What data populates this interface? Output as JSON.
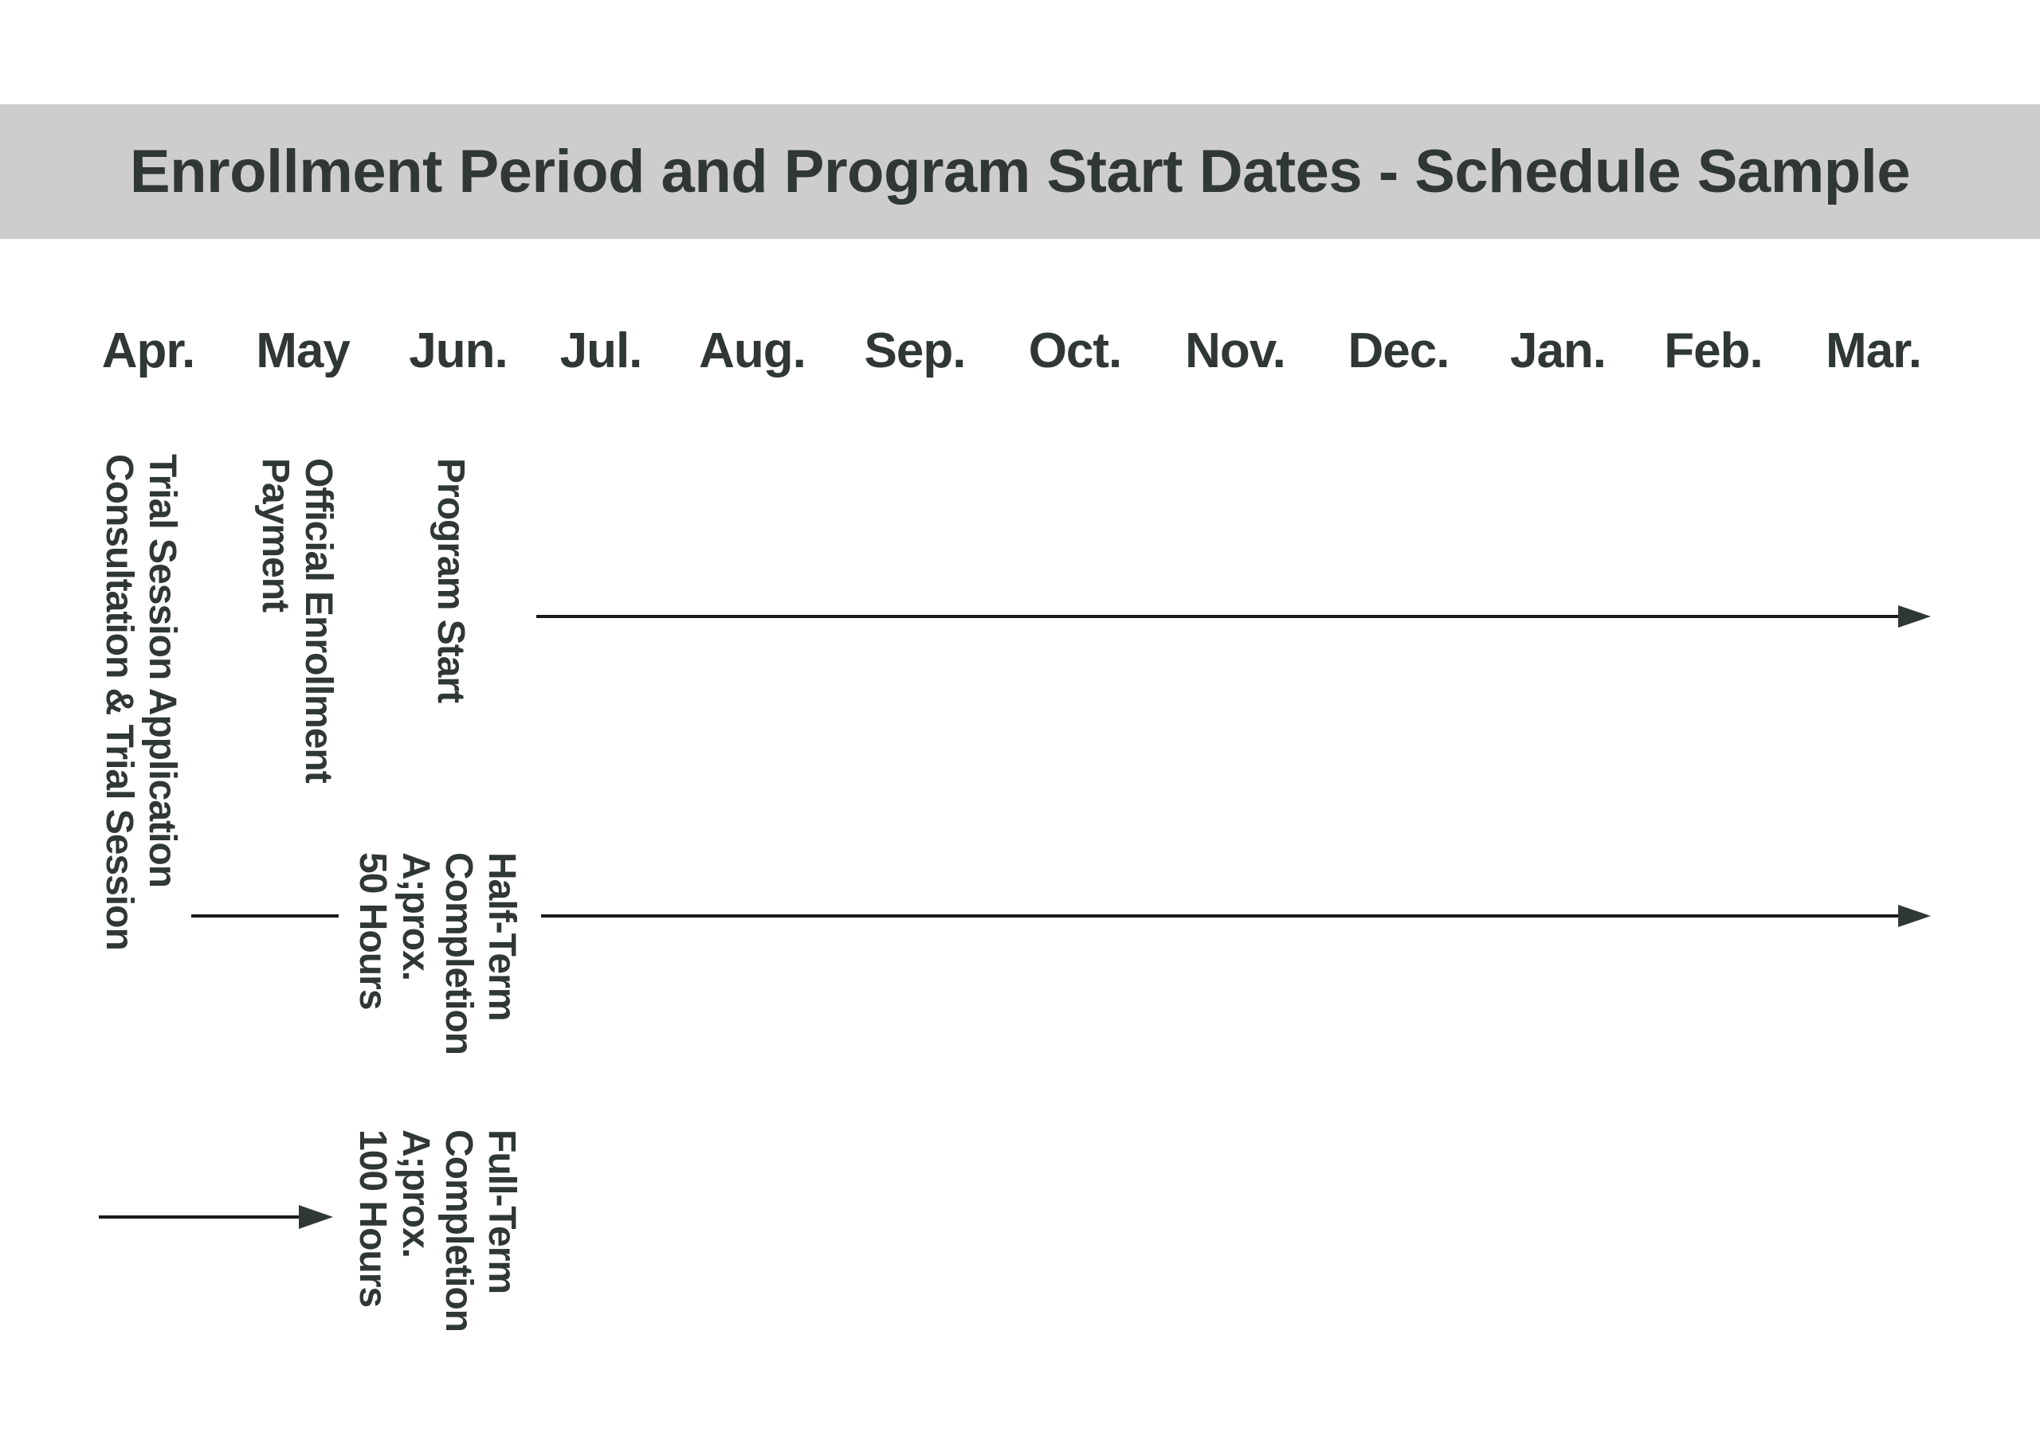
{
  "title": "Enrollment Period and Program Start Dates - Schedule Sample",
  "months": [
    "Apr.",
    "May",
    "Jun.",
    "Jul.",
    "Aug.",
    "Sep.",
    "Oct.",
    "Nov.",
    "Dec.",
    "Jan.",
    "Feb.",
    "Mar."
  ],
  "labels": {
    "trial": [
      "Trial Session Application",
      "Consultation & Trial Session"
    ],
    "enrollment": [
      "Official Enrollment",
      "Payment"
    ],
    "program_start": [
      "Program Start"
    ],
    "half_term": [
      "Half-Term",
      "Completion",
      "A;prox.",
      "50 Hours"
    ],
    "full_term": [
      "Full-Term",
      "Completion",
      "A;prox.",
      "100 Hours"
    ]
  },
  "colors": {
    "text": "#2f3833",
    "band": "#cdcdcd",
    "line": "#1a1a1a"
  }
}
